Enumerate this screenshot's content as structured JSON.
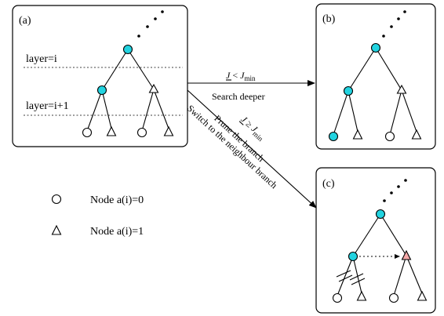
{
  "panels": [
    {
      "label": "(a)"
    },
    {
      "label": "(b)"
    },
    {
      "label": "(c)"
    }
  ],
  "layers": {
    "upper": "layer=i",
    "lower": "layer=i+1"
  },
  "arrows": {
    "deeper": {
      "condition_symbol": "J",
      "condition_op": " < ",
      "condition_rhs": "J",
      "condition_rhs_sub": "min",
      "caption": "Search deeper"
    },
    "prune": {
      "condition_symbol": "J",
      "condition_op": " ≥ ",
      "condition_rhs": "J",
      "condition_rhs_sub": "min",
      "caption_line1": "Prune the branch",
      "caption_line2": "Switch to the neighbour branch"
    }
  },
  "legend": [
    {
      "shape": "circle",
      "label": "Node a(i)=0"
    },
    {
      "shape": "triangle",
      "label": "Node a(i)=1"
    }
  ],
  "colors": {
    "filled_node": "#22d3e0",
    "switched_node": "#f4a7a7"
  }
}
